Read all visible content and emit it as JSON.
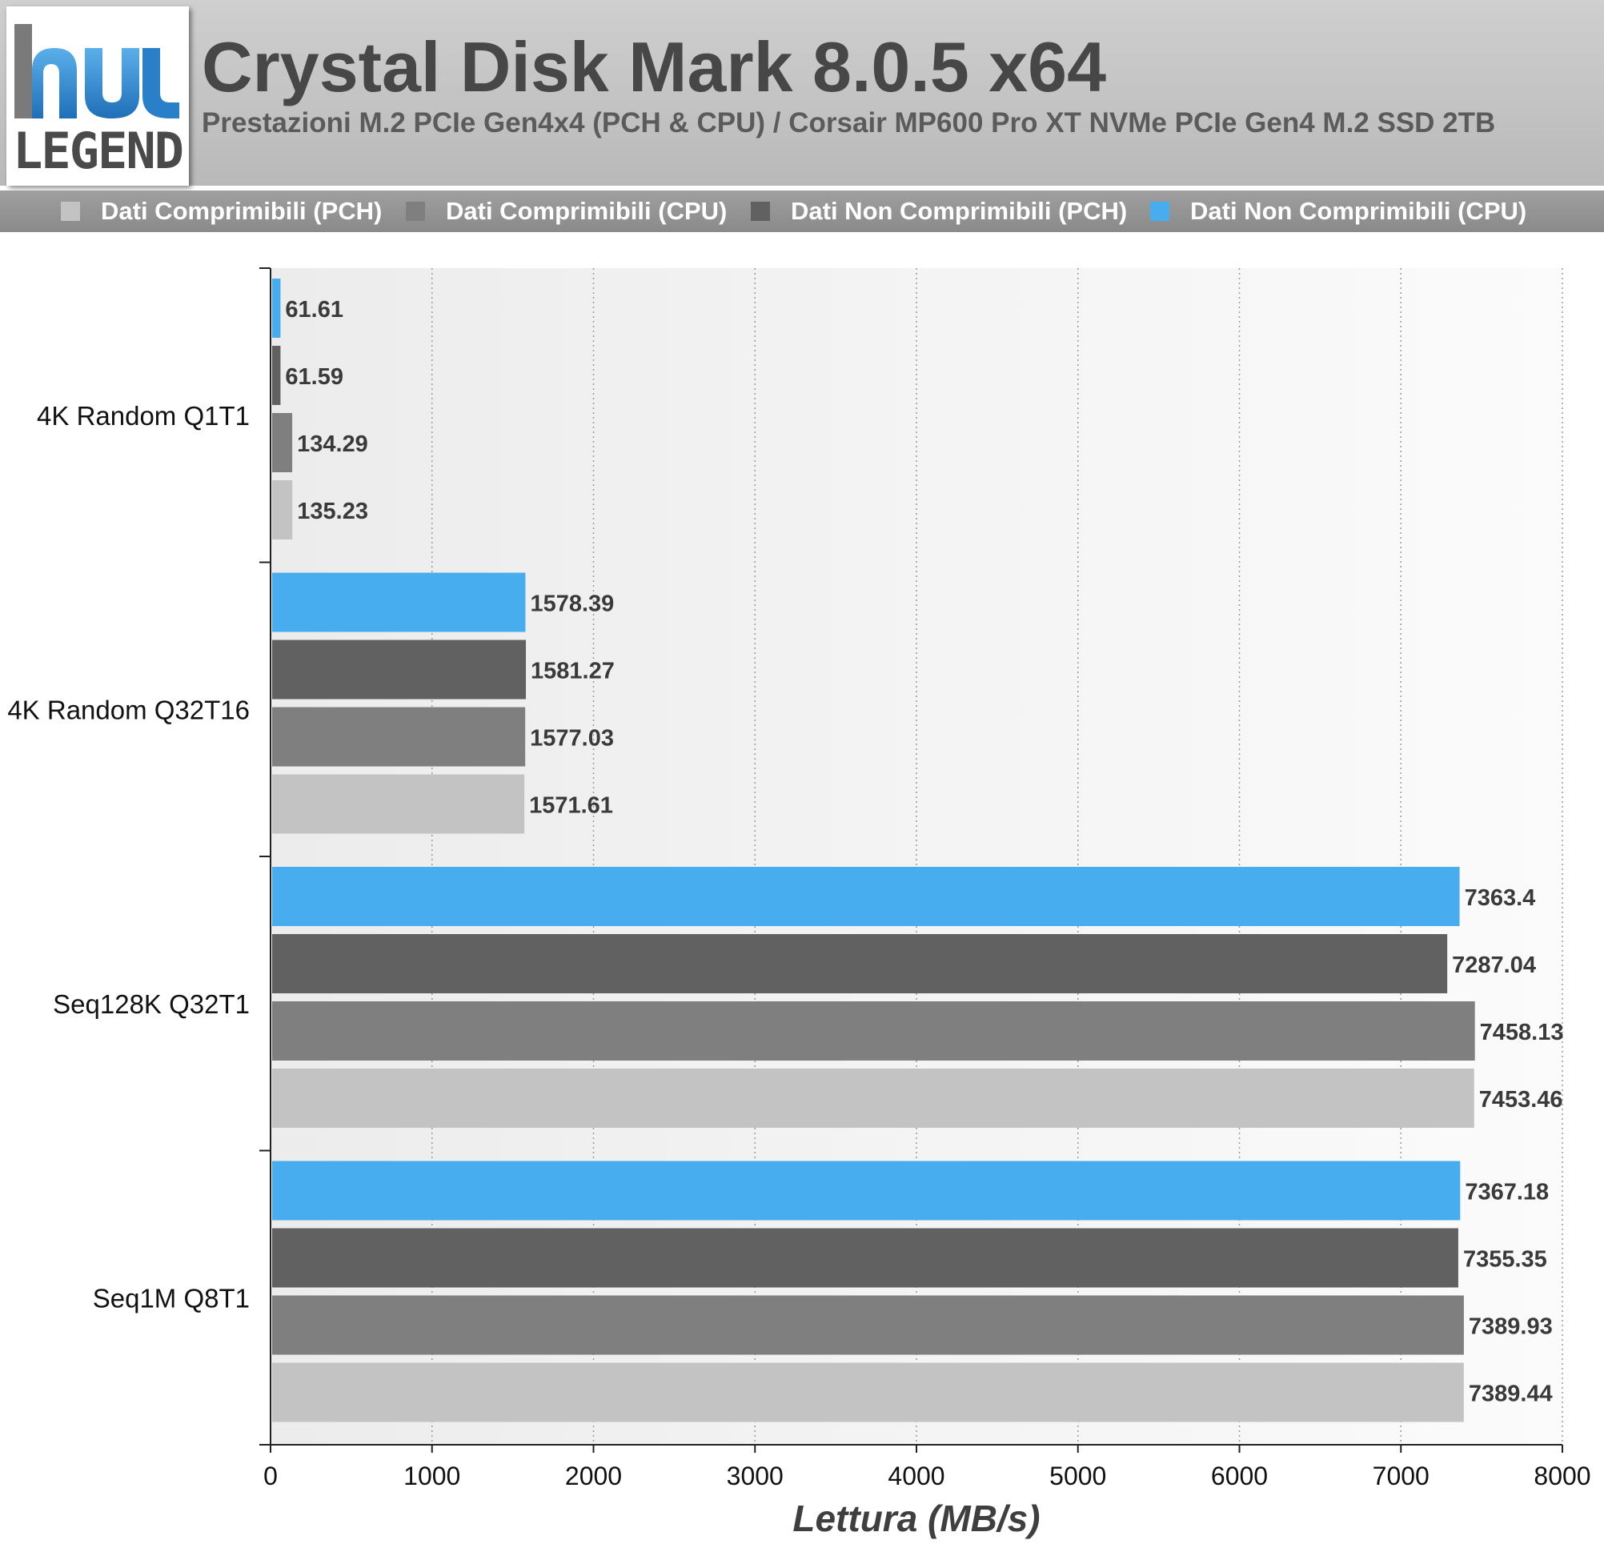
{
  "header": {
    "logo_text": "LEGEND",
    "title": "Crystal Disk Mark 8.0.5 x64",
    "subtitle": "Prestazioni M.2 PCIe Gen4x4 (PCH & CPU) / Corsair MP600 Pro XT NVMe PCIe Gen4 M.2 SSD 2TB"
  },
  "legend": [
    {
      "label": "Dati Comprimibili (PCH)",
      "color": "#c3c3c3"
    },
    {
      "label": "Dati Comprimibili (CPU)",
      "color": "#7f7f7f"
    },
    {
      "label": "Dati Non Comprimibili (PCH)",
      "color": "#616161"
    },
    {
      "label": "Dati Non Comprimibili (CPU)",
      "color": "#48adef"
    }
  ],
  "chart_data": {
    "type": "bar",
    "orientation": "horizontal",
    "categories": [
      "4K Random Q1T1",
      "4K Random Q32T16",
      "Seq128K Q32T1",
      "Seq1M Q8T1"
    ],
    "series": [
      {
        "name": "Dati Non Comprimibili (CPU)",
        "color": "#48adef",
        "values": [
          61.61,
          1578.39,
          7363.4,
          7367.18
        ],
        "labels": [
          "61.61",
          "1578.39",
          "7363.4",
          "7367.18"
        ]
      },
      {
        "name": "Dati Non Comprimibili (PCH)",
        "color": "#616161",
        "values": [
          61.59,
          1581.27,
          7287.04,
          7355.35
        ],
        "labels": [
          "61.59",
          "1581.27",
          "7287.04",
          "7355.35"
        ]
      },
      {
        "name": "Dati Comprimibili (CPU)",
        "color": "#7f7f7f",
        "values": [
          134.29,
          1577.03,
          7458.13,
          7389.93
        ],
        "labels": [
          "134.29",
          "1577.03",
          "7458.13",
          "7389.93"
        ]
      },
      {
        "name": "Dati Comprimibili (PCH)",
        "color": "#c3c3c3",
        "values": [
          135.23,
          1571.61,
          7453.46,
          7389.44
        ],
        "labels": [
          "135.23",
          "1571.61",
          "7453.46",
          "7389.44"
        ]
      }
    ],
    "xlabel": "Lettura (MB/s)",
    "xlim": [
      0,
      8000
    ],
    "xticks": [
      "0",
      "1000",
      "2000",
      "3000",
      "4000",
      "5000",
      "6000",
      "7000",
      "8000"
    ],
    "grid": "vertical dotted",
    "legend_position": "top"
  }
}
